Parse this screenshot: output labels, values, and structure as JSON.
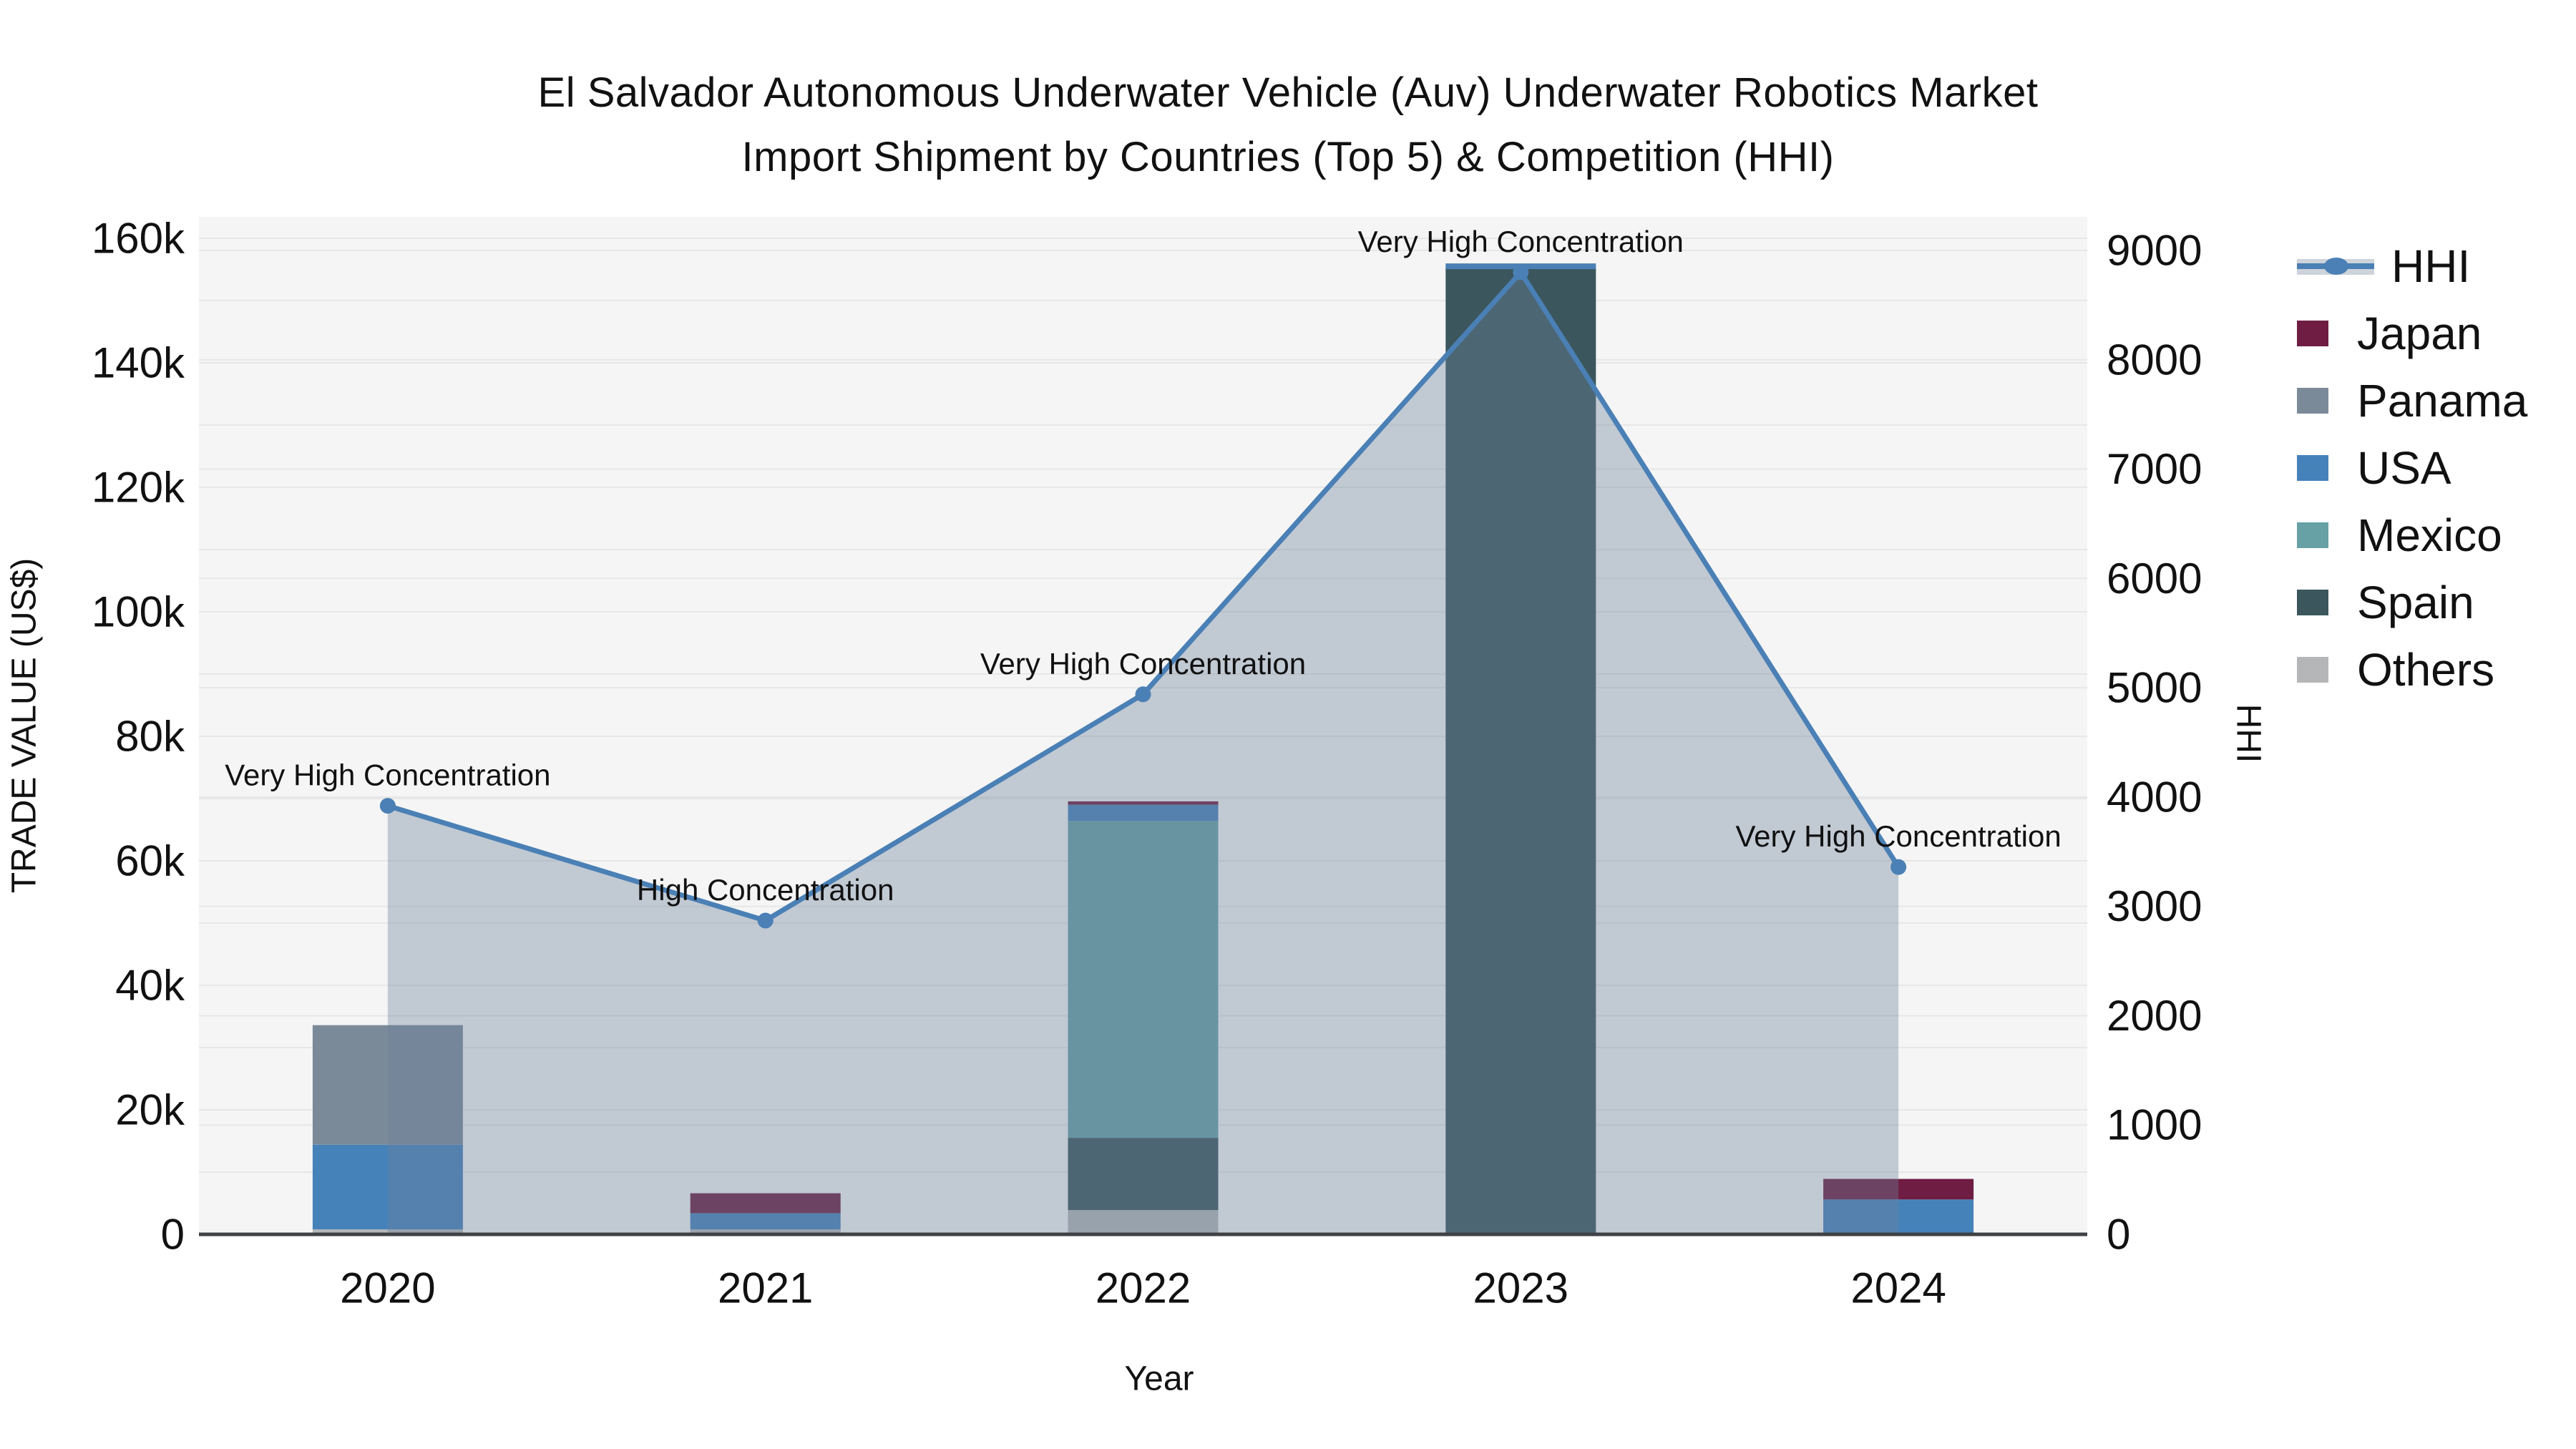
{
  "title": {
    "line1": "El Salvador Autonomous Underwater Vehicle (Auv) Underwater Robotics Market",
    "line2": "Import Shipment by Countries (Top 5) & Competition (HHI)"
  },
  "axes": {
    "y_left": {
      "title": "TRADE VALUE (US$)",
      "range": [
        0,
        160000
      ],
      "ticks": [
        {
          "v": 0,
          "label": "0"
        },
        {
          "v": 20000,
          "label": "20k"
        },
        {
          "v": 40000,
          "label": "40k"
        },
        {
          "v": 60000,
          "label": "60k"
        },
        {
          "v": 80000,
          "label": "80k"
        },
        {
          "v": 100000,
          "label": "100k"
        },
        {
          "v": 120000,
          "label": "120k"
        },
        {
          "v": 140000,
          "label": "140k"
        },
        {
          "v": 160000,
          "label": "160k"
        }
      ]
    },
    "y_right": {
      "title": "HHI",
      "range": [
        0,
        9000
      ],
      "ticks": [
        {
          "v": 0,
          "label": "0"
        },
        {
          "v": 1000,
          "label": "1000"
        },
        {
          "v": 2000,
          "label": "2000"
        },
        {
          "v": 3000,
          "label": "3000"
        },
        {
          "v": 4000,
          "label": "4000"
        },
        {
          "v": 5000,
          "label": "5000"
        },
        {
          "v": 6000,
          "label": "6000"
        },
        {
          "v": 7000,
          "label": "7000"
        },
        {
          "v": 8000,
          "label": "8000"
        },
        {
          "v": 9000,
          "label": "9000"
        }
      ]
    },
    "x": {
      "title": "Year"
    }
  },
  "legend": {
    "items": [
      {
        "label": "HHI",
        "type": "line",
        "color": "#4a80b5",
        "band": "#cdd3da"
      },
      {
        "label": "Japan",
        "type": "swatch",
        "color": "#6f1d42"
      },
      {
        "label": "Panama",
        "type": "swatch",
        "color": "#7b8a99"
      },
      {
        "label": "USA",
        "type": "swatch",
        "color": "#4682ba"
      },
      {
        "label": "Mexico",
        "type": "swatch",
        "color": "#67a1a6"
      },
      {
        "label": "Spain",
        "type": "swatch",
        "color": "#3b565c"
      },
      {
        "label": "Others",
        "type": "swatch",
        "color": "#b4b6b8"
      }
    ]
  },
  "chart_data": {
    "type": "bar",
    "subtype": "stacked-bars-with-line",
    "categories": [
      "2020",
      "2021",
      "2022",
      "2023",
      "2024"
    ],
    "bar_series": [
      {
        "name": "Others",
        "color": "#b4b6b8",
        "values": [
          800,
          800,
          3900,
          0,
          0
        ]
      },
      {
        "name": "Spain",
        "color": "#3b565c",
        "values": [
          0,
          0,
          11600,
          155500,
          0
        ]
      },
      {
        "name": "Mexico",
        "color": "#67a1a6",
        "values": [
          0,
          0,
          50900,
          0,
          0
        ]
      },
      {
        "name": "USA",
        "color": "#4682ba",
        "values": [
          13600,
          2600,
          2600,
          0,
          5600
        ]
      },
      {
        "name": "Panama",
        "color": "#7b8a99",
        "values": [
          19200,
          0,
          0,
          0,
          0
        ]
      },
      {
        "name": "Japan",
        "color": "#6f1d42",
        "values": [
          0,
          3200,
          550,
          0,
          3300
        ]
      }
    ],
    "line_series": {
      "name": "HHI",
      "axis": "right",
      "color": "#4a80b5",
      "area_fill": "rgba(108,130,155,0.38)",
      "values": [
        3920,
        2870,
        4940,
        8800,
        3360
      ]
    },
    "annotations": [
      {
        "x": "2020",
        "text": "Very High Concentration"
      },
      {
        "x": "2021",
        "text": "High Concentration"
      },
      {
        "x": "2022",
        "text": "Very High Concentration"
      },
      {
        "x": "2023",
        "text": "Very High Concentration"
      },
      {
        "x": "2024",
        "text": "Very High Concentration"
      }
    ],
    "bar_caps": [
      {
        "x": "2023",
        "color": "#4a80b5"
      }
    ],
    "plot_background": "#f5f5f5",
    "grid_color": "#e7e7e7",
    "axis_line_color": "#3f4245",
    "grid_on": true,
    "legend_position": "top-right-outside"
  }
}
